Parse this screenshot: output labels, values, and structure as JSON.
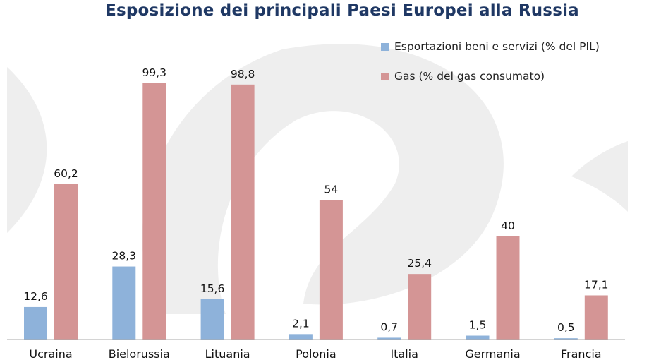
{
  "title": "Esposizione dei principali Paesi Europei alla Russia",
  "colors": {
    "exports": "#8eb2da",
    "gas": "#d49595",
    "title": "#1f3864",
    "watermark": "#eeeeee"
  },
  "legend": {
    "position": "top-right",
    "items": [
      {
        "label": "Esportazioni beni e servizi (% del PIL)",
        "color": "#8eb2da"
      },
      {
        "label": "Gas (% del gas consumato)",
        "color": "#d49595"
      }
    ]
  },
  "chart_data": {
    "type": "bar",
    "title": "Esposizione dei principali Paesi Europei alla Russia",
    "categories": [
      "Ucraina",
      "Bielorussia",
      "Lituania",
      "Polonia",
      "Italia",
      "Germania",
      "Francia"
    ],
    "series": [
      {
        "name": "Esportazioni beni e servizi (% del PIL)",
        "values": [
          12.6,
          28.3,
          15.6,
          2.1,
          0.7,
          1.5,
          0.5
        ],
        "labels": [
          "12,6",
          "28,3",
          "15,6",
          "2,1",
          "0,7",
          "1,5",
          "0,5"
        ],
        "color": "#8eb2da"
      },
      {
        "name": "Gas (% del gas consumato)",
        "values": [
          60.2,
          99.3,
          98.8,
          54,
          25.4,
          40,
          17.1
        ],
        "labels": [
          "60,2",
          "99,3",
          "98,8",
          "54",
          "25,4",
          "40",
          "17,1"
        ],
        "color": "#d49595"
      }
    ],
    "ylim": [
      0,
      100
    ],
    "grid": false,
    "legend": "top-right",
    "xlabel": "",
    "ylabel": ""
  }
}
